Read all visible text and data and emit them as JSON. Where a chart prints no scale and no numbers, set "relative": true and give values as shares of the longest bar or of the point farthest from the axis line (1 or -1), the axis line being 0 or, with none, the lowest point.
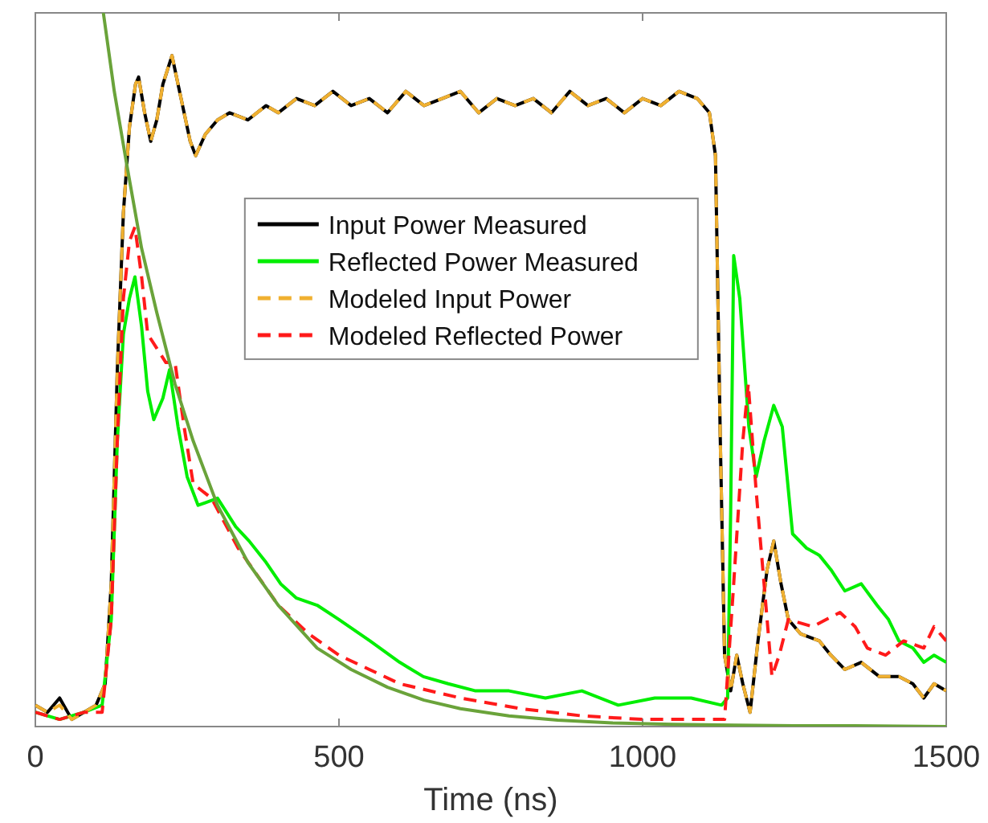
{
  "chart_data": {
    "type": "line",
    "relative": true,
    "xlabel": "Time (ns)",
    "xlim": [
      0,
      1500
    ],
    "xticks": [
      0,
      500,
      1000,
      1500
    ],
    "tick_labels": "x",
    "grid": false,
    "legend": "top",
    "marker": "none",
    "x": [
      0,
      20,
      40,
      60,
      80,
      100,
      115,
      125,
      135,
      145,
      155,
      165,
      170,
      180,
      190,
      200,
      210,
      225,
      240,
      255,
      264,
      280,
      300,
      320,
      350,
      380,
      400,
      430,
      460,
      490,
      520,
      550,
      580,
      610,
      640,
      670,
      700,
      730,
      760,
      790,
      820,
      850,
      880,
      910,
      940,
      970,
      1000,
      1030,
      1060,
      1090,
      1110,
      1120,
      1128,
      1135,
      1145,
      1155,
      1165,
      1177,
      1190,
      1205,
      1216,
      1228,
      1240,
      1260,
      1291,
      1310,
      1333,
      1360,
      1390,
      1422,
      1445,
      1463,
      1480,
      1500
    ],
    "series": [
      {
        "name": "Input Power Measured",
        "color": "#000000",
        "line_style": "solid",
        "values": [
          0.03,
          0.02,
          0.04,
          0.01,
          0.02,
          0.03,
          0.06,
          0.2,
          0.5,
          0.72,
          0.84,
          0.9,
          0.91,
          0.86,
          0.82,
          0.85,
          0.9,
          0.94,
          0.88,
          0.82,
          0.8,
          0.83,
          0.85,
          0.86,
          0.85,
          0.87,
          0.86,
          0.88,
          0.87,
          0.89,
          0.87,
          0.88,
          0.86,
          0.89,
          0.87,
          0.88,
          0.89,
          0.86,
          0.88,
          0.87,
          0.88,
          0.86,
          0.89,
          0.87,
          0.88,
          0.86,
          0.88,
          0.87,
          0.89,
          0.88,
          0.86,
          0.8,
          0.4,
          0.1,
          0.05,
          0.1,
          0.06,
          0.02,
          0.12,
          0.22,
          0.26,
          0.2,
          0.15,
          0.13,
          0.12,
          0.1,
          0.08,
          0.09,
          0.07,
          0.07,
          0.06,
          0.04,
          0.06,
          0.05
        ]
      },
      {
        "name": "Reflected Power Measured",
        "color": "#00ee00",
        "line_style": "solid",
        "x": [
          0,
          40,
          80,
          110,
          125,
          135,
          145,
          155,
          164,
          175,
          185,
          195,
          210,
          221,
          235,
          250,
          268,
          300,
          330,
          352,
          380,
          404,
          430,
          464,
          500,
          551,
          600,
          639,
          680,
          725,
          780,
          840,
          900,
          960,
          1020,
          1080,
          1130,
          1140,
          1145,
          1150,
          1160,
          1175,
          1187,
          1200,
          1216,
          1230,
          1247,
          1270,
          1291,
          1310,
          1333,
          1360,
          1386,
          1405,
          1422,
          1445,
          1463,
          1480,
          1500
        ],
        "values": [
          0.02,
          0.01,
          0.02,
          0.03,
          0.15,
          0.4,
          0.55,
          0.6,
          0.63,
          0.56,
          0.47,
          0.43,
          0.46,
          0.5,
          0.42,
          0.35,
          0.31,
          0.32,
          0.28,
          0.26,
          0.23,
          0.2,
          0.18,
          0.17,
          0.15,
          0.12,
          0.09,
          0.07,
          0.06,
          0.05,
          0.05,
          0.04,
          0.05,
          0.03,
          0.04,
          0.04,
          0.03,
          0.04,
          0.3,
          0.66,
          0.6,
          0.42,
          0.35,
          0.4,
          0.45,
          0.42,
          0.27,
          0.25,
          0.24,
          0.22,
          0.19,
          0.2,
          0.17,
          0.15,
          0.12,
          0.11,
          0.09,
          0.1,
          0.09
        ]
      },
      {
        "name": "Modeled Input Power",
        "color": "#f0b030",
        "line_style": "dashed",
        "values": [
          0.03,
          0.02,
          0.03,
          0.01,
          0.02,
          0.03,
          0.06,
          0.2,
          0.5,
          0.72,
          0.84,
          0.9,
          0.91,
          0.86,
          0.82,
          0.85,
          0.9,
          0.94,
          0.88,
          0.82,
          0.8,
          0.83,
          0.85,
          0.86,
          0.85,
          0.87,
          0.86,
          0.88,
          0.87,
          0.89,
          0.87,
          0.88,
          0.86,
          0.89,
          0.87,
          0.88,
          0.89,
          0.86,
          0.88,
          0.87,
          0.88,
          0.86,
          0.89,
          0.87,
          0.88,
          0.86,
          0.88,
          0.87,
          0.89,
          0.88,
          0.86,
          0.8,
          0.4,
          0.1,
          0.05,
          0.1,
          0.06,
          0.02,
          0.12,
          0.22,
          0.26,
          0.2,
          0.15,
          0.13,
          0.12,
          0.1,
          0.08,
          0.09,
          0.07,
          0.07,
          0.06,
          0.04,
          0.06,
          0.05
        ]
      },
      {
        "name": "Modeled Reflected Power",
        "color": "#ff1a1a",
        "line_style": "dashed",
        "x": [
          0,
          40,
          80,
          110,
          125,
          135,
          145,
          155,
          164,
          175,
          185,
          200,
          215,
          230,
          245,
          260,
          290,
          334,
          400,
          450,
          500,
          550,
          600,
          700,
          800,
          900,
          1000,
          1100,
          1135,
          1150,
          1165,
          1174,
          1187,
          1200,
          1213,
          1225,
          1240,
          1280,
          1325,
          1350,
          1370,
          1400,
          1430,
          1463,
          1480,
          1500
        ],
        "values": [
          0.02,
          0.01,
          0.02,
          0.02,
          0.15,
          0.4,
          0.6,
          0.68,
          0.7,
          0.63,
          0.55,
          0.53,
          0.51,
          0.51,
          0.42,
          0.34,
          0.32,
          0.25,
          0.17,
          0.13,
          0.1,
          0.08,
          0.06,
          0.04,
          0.025,
          0.015,
          0.01,
          0.01,
          0.01,
          0.2,
          0.4,
          0.48,
          0.33,
          0.2,
          0.07,
          0.1,
          0.15,
          0.14,
          0.16,
          0.14,
          0.11,
          0.1,
          0.12,
          0.11,
          0.14,
          0.12
        ]
      },
      {
        "color": "#6aa33a",
        "line_style": "solid",
        "x": [
          112,
          130,
          150,
          175,
          200,
          230,
          260,
          300,
          350,
          400,
          464,
          520,
          580,
          640,
          700,
          780,
          860,
          950,
          1050,
          1150,
          1250,
          1350,
          1500
        ],
        "values": [
          1,
          0.89,
          0.79,
          0.67,
          0.58,
          0.48,
          0.4,
          0.31,
          0.23,
          0.17,
          0.11,
          0.08,
          0.055,
          0.037,
          0.025,
          0.015,
          0.009,
          0.005,
          0.003,
          0.002,
          0.001,
          0.001,
          0
        ]
      }
    ]
  }
}
